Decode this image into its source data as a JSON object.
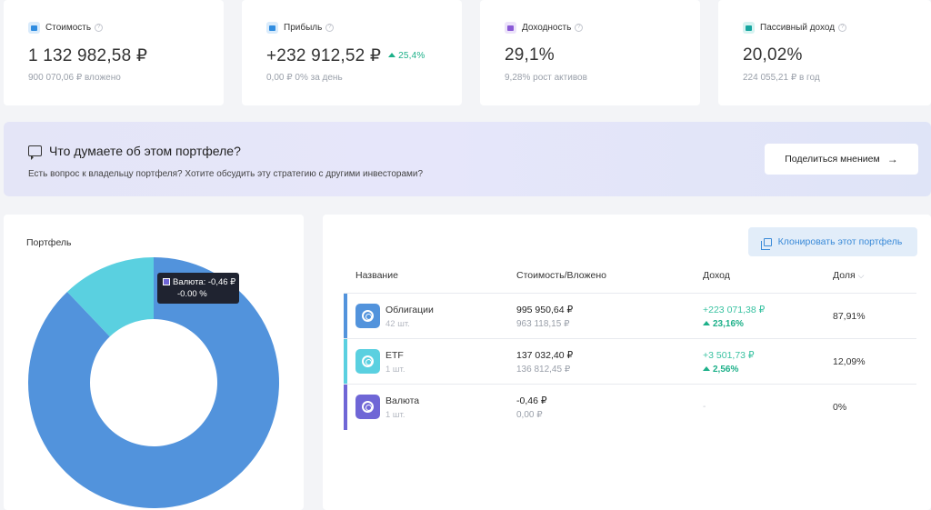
{
  "stats": [
    {
      "label": "Стоимость",
      "value": "1 132 982,58 ₽",
      "sub": "900 070,06 ₽ вложено",
      "badge": "",
      "icon": "wallet-icon",
      "color": "#2f8ce0",
      "iconbg": "#d9ebfb"
    },
    {
      "label": "Прибыль",
      "value": "+232 912,52 ₽",
      "sub": "0,00 ₽  0% за день",
      "badge": "25,4%",
      "icon": "chart-icon",
      "color": "#2f8ce0",
      "iconbg": "#d9ebfb"
    },
    {
      "label": "Доходность",
      "value": "29,1%",
      "sub": "9,28%  рост активов",
      "badge": "",
      "icon": "calendar-icon",
      "color": "#8a5ad6",
      "iconbg": "#ece3fa"
    },
    {
      "label": "Пассивный доход",
      "value": "20,02%",
      "sub": "224 055,21 ₽ в год",
      "badge": "",
      "icon": "piggy-bank-icon",
      "color": "#17a6a0",
      "iconbg": "#d6f3f1"
    }
  ],
  "help_icon": "?",
  "banner": {
    "title": "Что думаете об этом портфеле?",
    "text": "Есть вопрос к владельцу портфеля? Хотите обсудить эту стратегию с другими инвесторами?",
    "button": "Поделиться мнением",
    "arrow": "→"
  },
  "portfolio": {
    "title": "Портфель",
    "tooltip_line1": "Валюта: -0,46 ₽",
    "tooltip_line2": "-0.00 %"
  },
  "chart_data": {
    "type": "pie",
    "donut": true,
    "categories": [
      "Облигации",
      "ETF",
      "Валюта"
    ],
    "values": [
      87.91,
      12.09,
      0.0
    ],
    "colors": [
      "#5293dc",
      "#5ad0e0",
      "#6f66d6"
    ]
  },
  "table": {
    "clone_button": "Клонировать этот портфель",
    "headers": {
      "name": "Название",
      "value": "Стоимость/Вложено",
      "income": "Доход",
      "share": "Доля",
      "sort": "⌵"
    },
    "rows": [
      {
        "name": "Облигации",
        "qty": "42 шт.",
        "value": "995 950,64 ₽",
        "invested": "963 118,15 ₽",
        "income": "+223 071,38 ₽",
        "income_pct": "23,16%",
        "share": "87,91%",
        "color": "#5293dc"
      },
      {
        "name": "ETF",
        "qty": "1 шт.",
        "value": "137 032,40 ₽",
        "invested": "136 812,45 ₽",
        "income": "+3 501,73 ₽",
        "income_pct": "2,56%",
        "share": "12,09%",
        "color": "#5ad0e0"
      },
      {
        "name": "Валюта",
        "qty": "1 шт.",
        "value": "-0,46 ₽",
        "invested": "0,00 ₽",
        "income": "-",
        "income_pct": "",
        "share": "0%",
        "color": "#6f66d6"
      }
    ]
  }
}
